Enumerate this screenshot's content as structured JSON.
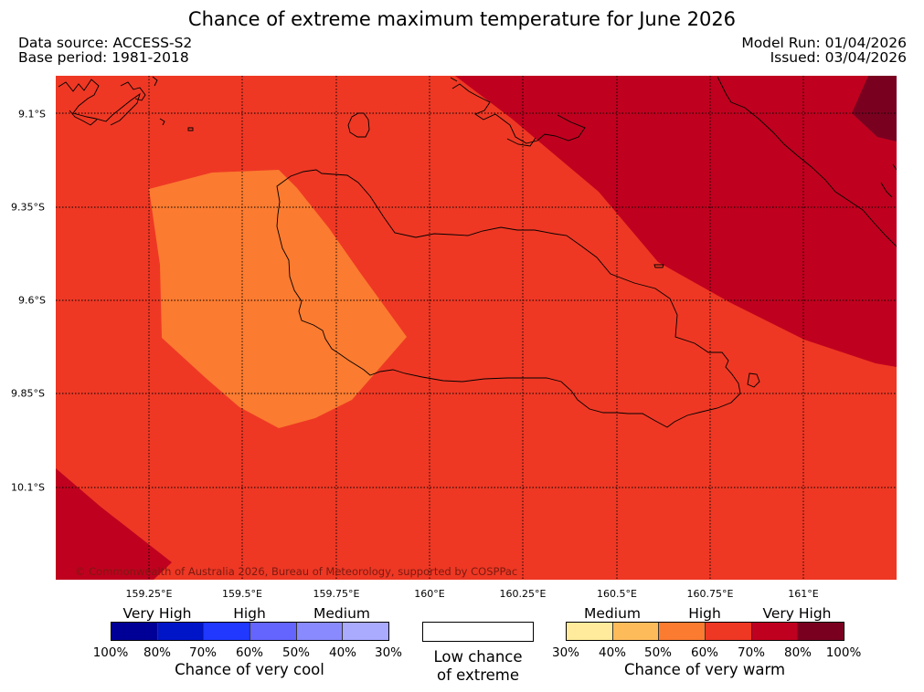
{
  "title": "Chance of extreme maximum temperature for June 2026",
  "header": {
    "data_source": "Data source: ACCESS-S2",
    "base_period": "Base period: 1981-2018",
    "model_run": "Model Run: 01/04/2026",
    "issued": "Issued: 03/04/2026"
  },
  "map": {
    "lon_labels": [
      "159.25°E",
      "159.5°E",
      "159.75°E",
      "160°E",
      "160.25°E",
      "160.5°E",
      "160.75°E",
      "161°E"
    ],
    "lat_labels": [
      "9.1°S",
      "9.35°S",
      "9.6°S",
      "9.85°S",
      "10.1°S"
    ],
    "copyright": "© Commonwealth of Australia 2026, Bureau of Meteorology, supported by COSPPac",
    "fill_colors": {
      "base_60_70": "#ee3824",
      "region_50_60": "#fb7b30",
      "region_70_80": "#c0001f",
      "region_80_100": "#7a0020"
    }
  },
  "legend": {
    "cool": {
      "categories": [
        "Very High",
        "High",
        "Medium"
      ],
      "colors": [
        "#000096",
        "#0014c8",
        "#2038ff",
        "#6464ff",
        "#8a8aff",
        "#aaaaff"
      ],
      "ticks": [
        "100%",
        "80%",
        "70%",
        "60%",
        "50%",
        "40%",
        "30%"
      ],
      "title": "Chance of very cool"
    },
    "low": {
      "line1": "Low chance",
      "line2": "of extreme"
    },
    "warm": {
      "categories": [
        "Medium",
        "High",
        "Very High"
      ],
      "colors": [
        "#ffeb9b",
        "#fdbb5a",
        "#fb7b30",
        "#ee3824",
        "#c0001f",
        "#7a0020"
      ],
      "ticks": [
        "30%",
        "40%",
        "50%",
        "60%",
        "70%",
        "80%",
        "100%"
      ],
      "title": "Chance of very warm"
    }
  }
}
